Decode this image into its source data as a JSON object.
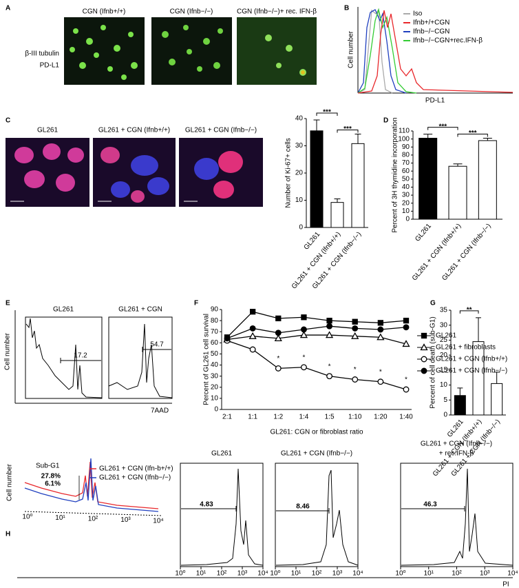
{
  "panels": {
    "A": {
      "label": "A",
      "titles": [
        "CGN (Ifnb+/+)",
        "CGN (Ifnb−/−)",
        "CGN (Ifnb−/−)+ rec. IFN-β"
      ],
      "stains": [
        {
          "text": "β-III tubulin",
          "color": "#66dd33"
        },
        {
          "text": "PD-L1",
          "color": "#e8262a"
        }
      ]
    },
    "B": {
      "label": "B",
      "ylabel": "Cell number",
      "xlabel": "PD-L1",
      "legend": [
        {
          "name": "Iso",
          "color": "#aaaaaa"
        },
        {
          "name": "Ifnb+/+CGN",
          "color": "#e8262a"
        },
        {
          "name": "Ifnb−/−CGN",
          "color": "#1f3fbf"
        },
        {
          "name": "Ifnb−/−CGN+rec.IFN-β",
          "color": "#33cc33"
        }
      ]
    },
    "C": {
      "label": "C",
      "titles": [
        "GL261",
        "GL261 + CGN (Ifnb+/+)",
        "GL261 + CGN (Ifnb−/−)"
      ],
      "chart": {
        "type": "bar",
        "ylabel": "Number of Ki-67+ cells",
        "categories": [
          "GL261",
          "GL261 + CGN (Ifnb+/+)",
          "GL261 + CGN (Ifnb−/−)"
        ],
        "values": [
          35.5,
          9.2,
          30.8
        ],
        "errors": [
          4,
          1.3,
          3.5
        ],
        "colors": [
          "#000000",
          "#ffffff",
          "#ffffff"
        ],
        "ylim": [
          0,
          40
        ],
        "yticks": [
          0,
          10,
          20,
          30,
          40
        ],
        "significance": [
          "***",
          "***"
        ]
      }
    },
    "D": {
      "label": "D",
      "chart": {
        "type": "bar",
        "ylabel": "Percent of 3H thymidine incorporation",
        "categories": [
          "GL261",
          "GL261 + CGN (Ifnb+/+)",
          "GL261 + CGN (Ifnb−/−)"
        ],
        "values": [
          101,
          66,
          98
        ],
        "errors": [
          5,
          3,
          3
        ],
        "colors": [
          "#000000",
          "#ffffff",
          "#ffffff"
        ],
        "ylim": [
          0,
          110
        ],
        "yticks": [
          0,
          10,
          20,
          30,
          40,
          50,
          60,
          70,
          80,
          90,
          100,
          110
        ],
        "significance": [
          "***",
          "***"
        ]
      }
    },
    "E": {
      "label": "E",
      "ylabel": "Cell number",
      "xlabel": "7AAD",
      "titles": [
        "GL261",
        "GL261 + CGN"
      ],
      "gates": [
        17.2,
        54.7
      ]
    },
    "F": {
      "label": "F",
      "chart": {
        "type": "line",
        "ylabel": "Percent of GL261 cell survival",
        "xlabel": "GL261: CGN or fibroblast ratio",
        "categories": [
          "2:1",
          "1:1",
          "1:2",
          "1:4",
          "1:5",
          "1:10",
          "1:20",
          "1:40"
        ],
        "ylim": [
          0,
          90
        ],
        "yticks": [
          0,
          10,
          20,
          30,
          40,
          50,
          60,
          70,
          80,
          90
        ],
        "series": [
          {
            "name": "GL261",
            "color": "#000000",
            "marker": "square",
            "values": [
              65,
              88,
              82,
              83,
              80,
              79,
              78,
              80
            ]
          },
          {
            "name": "GL261 + fibroblasts",
            "color": "#000000",
            "marker": "triangle-open",
            "values": [
              63,
              66,
              64,
              67,
              67,
              66,
              65,
              59
            ]
          },
          {
            "name": "GL261 + CGN (Ifnb+/+)",
            "color": "#000000",
            "marker": "circle-open",
            "values": [
              62,
              54,
              37,
              38,
              30,
              27,
              25,
              18
            ]
          },
          {
            "name": "GL261 + CGN (Ifnb−/−)",
            "color": "#000000",
            "marker": "circle",
            "values": [
              64,
              73,
              69,
              72,
              75,
              73,
              72,
              74
            ]
          }
        ],
        "significance": [
          null,
          null,
          "*",
          "*",
          "*",
          "*",
          "*",
          "*"
        ]
      }
    },
    "G": {
      "label": "G",
      "chart": {
        "type": "bar",
        "ylabel": "Percent of cell death (sub-G1)",
        "categories": [
          "GL261",
          "GL261 + CGN (Ifnb+/+)",
          "GL261 + CGN (Ifnb−/−)"
        ],
        "values": [
          6.5,
          24.5,
          10.5
        ],
        "errors": [
          2.5,
          8,
          3.8
        ],
        "colors": [
          "#000000",
          "#ffffff",
          "#ffffff"
        ],
        "ylim": [
          0,
          35
        ],
        "yticks": [
          0,
          5,
          10,
          15,
          20,
          25,
          30,
          35
        ],
        "significance": [
          "**"
        ]
      }
    },
    "H": {
      "label": "H",
      "ylabel": "Cell number",
      "xlabel": "PI",
      "gate_label": "Sub-G1",
      "overlay": [
        {
          "name": "GL261 + CGN (Ifn-b+/+)",
          "color": "#e8262a",
          "percent": {
            "value": 27.8,
            "label": "27.8%"
          }
        },
        {
          "name": "GL261 + CGN (Ifnb−/−)",
          "color": "#1f3fbf",
          "percent": {
            "value": 6.1,
            "label": "6.1%"
          }
        }
      ],
      "titles": [
        [
          "GL261"
        ],
        [
          "GL261 + CGN (Ifnb−/−)"
        ],
        [
          "GL261 + CGN (Ifnb−/−)",
          "+ rec.IFN-β"
        ]
      ],
      "gates": [
        4.83,
        8.46,
        46.3
      ],
      "log": true,
      "xlim": [
        1,
        10000
      ],
      "xticks": [
        {
          "value": 1,
          "label": "10⁰"
        },
        {
          "value": 10,
          "label": "10¹"
        },
        {
          "value": 100,
          "label": "10²"
        },
        {
          "value": 1000,
          "label": "10³"
        },
        {
          "value": 10000,
          "label": "10⁴"
        }
      ]
    }
  }
}
